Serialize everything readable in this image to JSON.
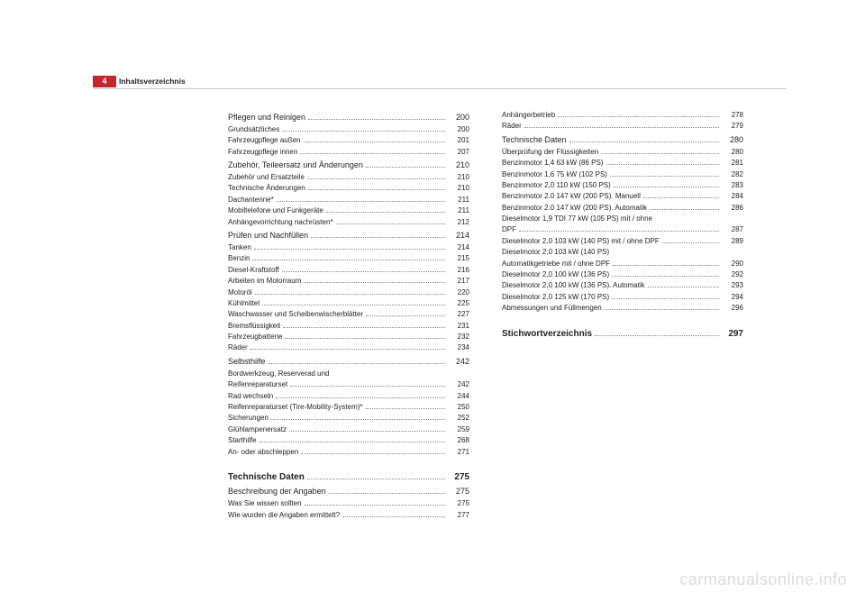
{
  "page_number": "4",
  "header_title": "Inhaltsverzeichnis",
  "watermark": "carmanualsonline.info",
  "columns": [
    [
      {
        "level": 1,
        "label": "Pflegen und Reinigen",
        "page": "200"
      },
      {
        "level": 2,
        "label": "Grundsätzliches",
        "page": "200"
      },
      {
        "level": 2,
        "label": "Fahrzeugpflege außen",
        "page": "201"
      },
      {
        "level": 2,
        "label": "Fahrzeugpflege innen",
        "page": "207"
      },
      {
        "level": 1,
        "label": "Zubehör, Teileersatz und Änderungen",
        "page": "210"
      },
      {
        "level": 2,
        "label": "Zubehör und Ersatzteile",
        "page": "210"
      },
      {
        "level": 2,
        "label": "Technische Änderungen",
        "page": "210"
      },
      {
        "level": 2,
        "label": "Dachantenne*",
        "page": "211"
      },
      {
        "level": 2,
        "label": "Mobiltelefone und Funkgeräte",
        "page": "211"
      },
      {
        "level": 2,
        "label": "Anhängevorrichtung nachrüsten*",
        "page": "212"
      },
      {
        "level": 1,
        "label": "Prüfen und Nachfüllen",
        "page": "214"
      },
      {
        "level": 2,
        "label": "Tanken",
        "page": "214"
      },
      {
        "level": 2,
        "label": "Benzin",
        "page": "215"
      },
      {
        "level": 2,
        "label": "Diesel-Kraftstoff",
        "page": "216"
      },
      {
        "level": 2,
        "label": "Arbeiten im Motorraum",
        "page": "217"
      },
      {
        "level": 2,
        "label": "Motoröl",
        "page": "220"
      },
      {
        "level": 2,
        "label": "Kühlmittel",
        "page": "225"
      },
      {
        "level": 2,
        "label": "Waschwasser und Scheibenwischerblätter",
        "page": "227"
      },
      {
        "level": 2,
        "label": "Bremsflüssigkeit",
        "page": "231"
      },
      {
        "level": 2,
        "label": "Fahrzeugbatterie",
        "page": "232"
      },
      {
        "level": 2,
        "label": "Räder",
        "page": "234"
      },
      {
        "level": 1,
        "label": "Selbsthilfe",
        "page": "242"
      },
      {
        "level": 2,
        "label": "Bordwerkzeug, Reserverad und",
        "nopg": true
      },
      {
        "level": 2,
        "label": "Reifenreparaturset",
        "page": "242"
      },
      {
        "level": 2,
        "label": "Rad wechseln",
        "page": "244"
      },
      {
        "level": 2,
        "label": "Reifenreparaturset (Tire-Mobility-System)*",
        "page": "250"
      },
      {
        "level": 2,
        "label": "Sicherungen",
        "page": "252"
      },
      {
        "level": 2,
        "label": "Glühlampenersatz",
        "page": "259"
      },
      {
        "level": 2,
        "label": "Starthilfe",
        "page": "268"
      },
      {
        "level": 2,
        "label": "An- oder abschleppen",
        "page": "271"
      },
      {
        "level": 0,
        "label": "Technische Daten",
        "page": "275"
      },
      {
        "level": 1,
        "label": "Beschreibung der Angaben",
        "page": "275"
      },
      {
        "level": 2,
        "label": "Was Sie wissen sollten",
        "page": "275"
      },
      {
        "level": 2,
        "label": "Wie wurden die Angaben ermittelt?",
        "page": "277"
      }
    ],
    [
      {
        "level": 2,
        "label": "Anhängerbetrieb",
        "page": "278"
      },
      {
        "level": 2,
        "label": "Räder",
        "page": "279"
      },
      {
        "level": 1,
        "label": "Technische Daten",
        "page": "280"
      },
      {
        "level": 2,
        "label": "Überprüfung der Flüssigkeiten",
        "page": "280"
      },
      {
        "level": 2,
        "label": "Benzinmotor 1,4 63 kW (86 PS)",
        "page": "281"
      },
      {
        "level": 2,
        "label": "Benzinmotor 1,6 75 kW (102 PS)",
        "page": "282"
      },
      {
        "level": 2,
        "label": "Benzinmotor 2,0 110 kW (150 PS)",
        "page": "283"
      },
      {
        "level": 2,
        "label": "Benzinmotor 2.0 147 kW (200 PS). Manuell",
        "page": "284"
      },
      {
        "level": 2,
        "label": "Benzinmotor 2.0 147 kW (200 PS). Automatik",
        "page": "286"
      },
      {
        "level": 2,
        "label": "Dieselmotor 1,9 TDI 77 kW (105 PS) mit / ohne",
        "nopg": true
      },
      {
        "level": 2,
        "label": "DPF",
        "page": "287"
      },
      {
        "level": 2,
        "label": "Dieselmotor 2,0 103 kW (140 PS) mit / ohne DPF",
        "page": "289"
      },
      {
        "level": 2,
        "label": "Dieselmotor 2,0 103 kW (140 PS)",
        "nopg": true
      },
      {
        "level": 2,
        "label": "Automatikgetriebe mit / ohne DPF",
        "page": "290"
      },
      {
        "level": 2,
        "label": "Dieselmotor 2,0 100 kW (136 PS)",
        "page": "292"
      },
      {
        "level": 2,
        "label": "Dieselmotor 2,0 100 kW (136 PS). Automatik",
        "page": "293"
      },
      {
        "level": 2,
        "label": "Dieselmotor 2,0 125 kW (170 PS)",
        "page": "294"
      },
      {
        "level": 2,
        "label": "Abmessungen und Füllmengen",
        "page": "296"
      },
      {
        "level": 0,
        "label": "Stichwortverzeichnis",
        "page": "297"
      }
    ]
  ]
}
